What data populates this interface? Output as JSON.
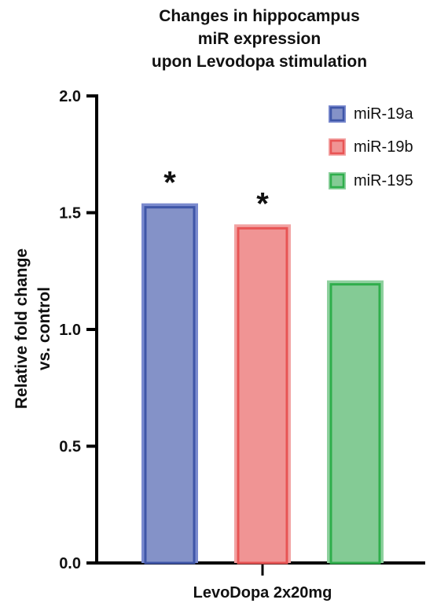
{
  "chart_data": {
    "type": "bar",
    "title_lines": [
      "Changes in hippocampus",
      "miR expression",
      "upon Levodopa stimulation"
    ],
    "xlabel": "LevoDopa 2x20mg",
    "ylabel_lines": [
      "Relative fold change",
      "vs. control"
    ],
    "categories": [
      "LevoDopa 2x20mg"
    ],
    "ylim": [
      0,
      2.0
    ],
    "yticks": [
      0.0,
      0.5,
      1.0,
      1.5,
      2.0
    ],
    "ytick_labels": [
      "0.0",
      "0.5",
      "1.0",
      "1.5",
      "2.0"
    ],
    "grid": false,
    "legend_position": "top-right",
    "series": [
      {
        "name": "miR-19a",
        "values": [
          1.54
        ],
        "fill": "#8492c8",
        "edge": "#3f56a8",
        "border": "#7a8ace",
        "annotation": "*"
      },
      {
        "name": "miR-19b",
        "values": [
          1.45
        ],
        "fill": "#f09494",
        "edge": "#e85454",
        "border": "#f2a3a3",
        "annotation": "*"
      },
      {
        "name": "miR-195",
        "values": [
          1.21
        ],
        "fill": "#84cb95",
        "edge": "#2fae4c",
        "border": "#8ed09e",
        "annotation": ""
      }
    ]
  }
}
